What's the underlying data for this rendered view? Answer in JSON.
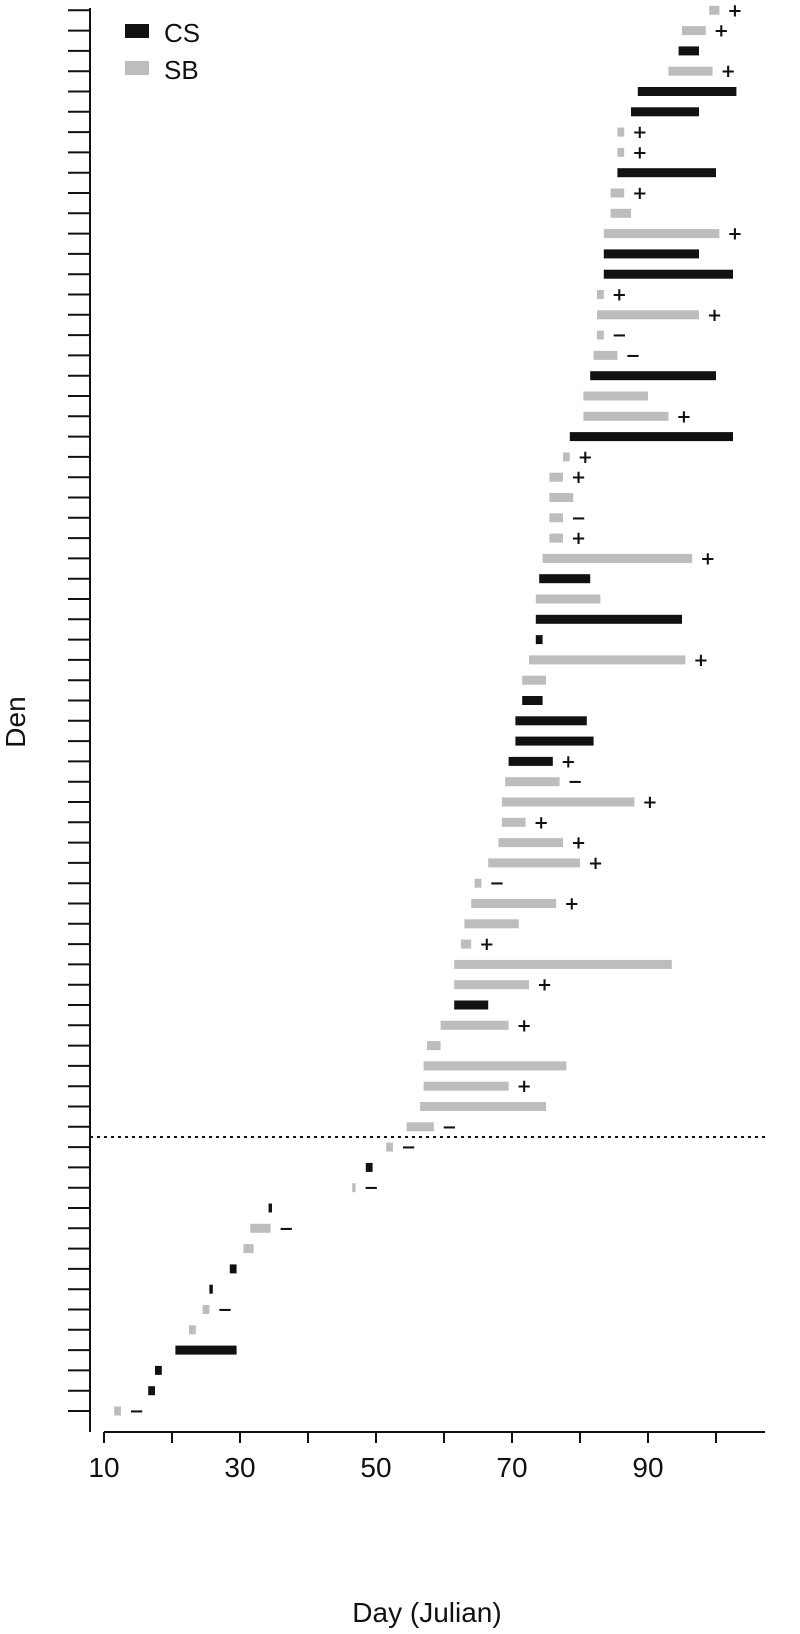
{
  "chart_data": {
    "type": "bar",
    "xlabel": "Day (Julian)",
    "ylabel": "Den",
    "xlim": [
      9,
      106
    ],
    "xticks": [
      10,
      30,
      50,
      70,
      90
    ],
    "tick_labels": [
      "10",
      "30",
      "50",
      "70",
      "90"
    ],
    "legend_position": "top-left",
    "colors": {
      "CS": "#111111",
      "SB": "#bdbdbd"
    },
    "series": [
      {
        "name": "CS"
      },
      {
        "name": "SB"
      }
    ],
    "threshold_line_style": "dotted",
    "threshold_after_den": 14,
    "bars": [
      {
        "den": 1,
        "type": "SB",
        "start": 11.5,
        "end": 12.5,
        "sign": "−"
      },
      {
        "den": 2,
        "type": "CS",
        "start": 16.5,
        "end": 17.5,
        "sign": ""
      },
      {
        "den": 3,
        "type": "CS",
        "start": 17.5,
        "end": 18.5,
        "sign": ""
      },
      {
        "den": 4,
        "type": "CS",
        "start": 20.5,
        "end": 29.5,
        "sign": ""
      },
      {
        "den": 5,
        "type": "SB",
        "start": 22.5,
        "end": 23.5,
        "sign": ""
      },
      {
        "den": 6,
        "type": "SB",
        "start": 24.5,
        "end": 25.5,
        "sign": "−"
      },
      {
        "den": 7,
        "type": "CS",
        "start": 25.5,
        "end": 26.0,
        "sign": ""
      },
      {
        "den": 8,
        "type": "CS",
        "start": 28.5,
        "end": 29.5,
        "sign": ""
      },
      {
        "den": 9,
        "type": "SB",
        "start": 30.5,
        "end": 32.0,
        "sign": ""
      },
      {
        "den": 10,
        "type": "SB",
        "start": 31.5,
        "end": 34.5,
        "sign": "−"
      },
      {
        "den": 11,
        "type": "CS",
        "start": 34.2,
        "end": 34.7,
        "sign": ""
      },
      {
        "den": 12,
        "type": "SB",
        "start": 46.5,
        "end": 47.0,
        "sign": "−"
      },
      {
        "den": 13,
        "type": "CS",
        "start": 48.5,
        "end": 49.5,
        "sign": ""
      },
      {
        "den": 14,
        "type": "SB",
        "start": 51.5,
        "end": 52.5,
        "sign": "−"
      },
      {
        "den": 15,
        "type": "SB",
        "start": 54.5,
        "end": 58.5,
        "sign": "−"
      },
      {
        "den": 16,
        "type": "SB",
        "start": 56.5,
        "end": 75.0,
        "sign": ""
      },
      {
        "den": 17,
        "type": "SB",
        "start": 57.0,
        "end": 69.5,
        "sign": "+"
      },
      {
        "den": 18,
        "type": "SB",
        "start": 57.0,
        "end": 78.0,
        "sign": ""
      },
      {
        "den": 19,
        "type": "SB",
        "start": 57.5,
        "end": 59.5,
        "sign": ""
      },
      {
        "den": 20,
        "type": "SB",
        "start": 59.5,
        "end": 69.5,
        "sign": "+"
      },
      {
        "den": 21,
        "type": "CS",
        "start": 61.5,
        "end": 66.5,
        "sign": ""
      },
      {
        "den": 22,
        "type": "SB",
        "start": 61.5,
        "end": 72.5,
        "sign": "+"
      },
      {
        "den": 23,
        "type": "SB",
        "start": 61.5,
        "end": 93.5,
        "sign": ""
      },
      {
        "den": 24,
        "type": "SB",
        "start": 62.5,
        "end": 64.0,
        "sign": "+"
      },
      {
        "den": 25,
        "type": "SB",
        "start": 63.0,
        "end": 71.0,
        "sign": ""
      },
      {
        "den": 26,
        "type": "SB",
        "start": 64.0,
        "end": 76.5,
        "sign": "+"
      },
      {
        "den": 27,
        "type": "SB",
        "start": 64.5,
        "end": 65.5,
        "sign": "−"
      },
      {
        "den": 28,
        "type": "SB",
        "start": 66.5,
        "end": 80.0,
        "sign": "+"
      },
      {
        "den": 29,
        "type": "SB",
        "start": 68.0,
        "end": 77.5,
        "sign": "+"
      },
      {
        "den": 30,
        "type": "SB",
        "start": 68.5,
        "end": 72.0,
        "sign": "+"
      },
      {
        "den": 31,
        "type": "SB",
        "start": 68.5,
        "end": 88.0,
        "sign": "+"
      },
      {
        "den": 32,
        "type": "SB",
        "start": 69.0,
        "end": 77.0,
        "sign": "−"
      },
      {
        "den": 33,
        "type": "CS",
        "start": 69.5,
        "end": 76.0,
        "sign": "+"
      },
      {
        "den": 34,
        "type": "CS",
        "start": 70.5,
        "end": 82.0,
        "sign": ""
      },
      {
        "den": 35,
        "type": "CS",
        "start": 70.5,
        "end": 81.0,
        "sign": ""
      },
      {
        "den": 36,
        "type": "CS",
        "start": 71.5,
        "end": 74.5,
        "sign": ""
      },
      {
        "den": 37,
        "type": "SB",
        "start": 71.5,
        "end": 75.0,
        "sign": ""
      },
      {
        "den": 38,
        "type": "SB",
        "start": 72.5,
        "end": 95.5,
        "sign": "+"
      },
      {
        "den": 39,
        "type": "CS",
        "start": 73.5,
        "end": 74.5,
        "sign": ""
      },
      {
        "den": 40,
        "type": "CS",
        "start": 73.5,
        "end": 95.0,
        "sign": ""
      },
      {
        "den": 41,
        "type": "SB",
        "start": 73.5,
        "end": 83.0,
        "sign": ""
      },
      {
        "den": 42,
        "type": "CS",
        "start": 74.0,
        "end": 81.5,
        "sign": ""
      },
      {
        "den": 43,
        "type": "SB",
        "start": 74.5,
        "end": 96.5,
        "sign": "+"
      },
      {
        "den": 44,
        "type": "SB",
        "start": 75.5,
        "end": 77.5,
        "sign": "+"
      },
      {
        "den": 45,
        "type": "SB",
        "start": 75.5,
        "end": 77.5,
        "sign": "−"
      },
      {
        "den": 46,
        "type": "SB",
        "start": 75.5,
        "end": 79.0,
        "sign": ""
      },
      {
        "den": 47,
        "type": "SB",
        "start": 75.5,
        "end": 77.5,
        "sign": "+"
      },
      {
        "den": 48,
        "type": "SB",
        "start": 77.5,
        "end": 78.5,
        "sign": "+"
      },
      {
        "den": 49,
        "type": "CS",
        "start": 78.5,
        "end": 102.5,
        "sign": ""
      },
      {
        "den": 50,
        "type": "SB",
        "start": 80.5,
        "end": 93.0,
        "sign": "+"
      },
      {
        "den": 51,
        "type": "SB",
        "start": 80.5,
        "end": 90.0,
        "sign": ""
      },
      {
        "den": 52,
        "type": "CS",
        "start": 81.5,
        "end": 100.0,
        "sign": ""
      },
      {
        "den": 53,
        "type": "SB",
        "start": 82.0,
        "end": 85.5,
        "sign": "−"
      },
      {
        "den": 54,
        "type": "SB",
        "start": 82.5,
        "end": 83.5,
        "sign": "−"
      },
      {
        "den": 55,
        "type": "SB",
        "start": 82.5,
        "end": 97.5,
        "sign": "+"
      },
      {
        "den": 56,
        "type": "SB",
        "start": 82.5,
        "end": 83.5,
        "sign": "+"
      },
      {
        "den": 57,
        "type": "CS",
        "start": 83.5,
        "end": 102.5,
        "sign": ""
      },
      {
        "den": 58,
        "type": "CS",
        "start": 83.5,
        "end": 97.5,
        "sign": ""
      },
      {
        "den": 59,
        "type": "SB",
        "start": 83.5,
        "end": 100.5,
        "sign": "+"
      },
      {
        "den": 60,
        "type": "SB",
        "start": 84.5,
        "end": 87.5,
        "sign": ""
      },
      {
        "den": 61,
        "type": "SB",
        "start": 84.5,
        "end": 86.5,
        "sign": "+"
      },
      {
        "den": 62,
        "type": "CS",
        "start": 85.5,
        "end": 100.0,
        "sign": ""
      },
      {
        "den": 63,
        "type": "SB",
        "start": 85.5,
        "end": 86.5,
        "sign": "+"
      },
      {
        "den": 64,
        "type": "SB",
        "start": 85.5,
        "end": 86.5,
        "sign": "+"
      },
      {
        "den": 65,
        "type": "CS",
        "start": 87.5,
        "end": 97.5,
        "sign": ""
      },
      {
        "den": 66,
        "type": "CS",
        "start": 88.5,
        "end": 103.0,
        "sign": ""
      },
      {
        "den": 67,
        "type": "SB",
        "start": 93.0,
        "end": 99.5,
        "sign": "+"
      },
      {
        "den": 68,
        "type": "CS",
        "start": 94.5,
        "end": 97.5,
        "sign": ""
      },
      {
        "den": 69,
        "type": "SB",
        "start": 95.0,
        "end": 98.5,
        "sign": "+"
      },
      {
        "den": 70,
        "type": "SB",
        "start": 99.0,
        "end": 100.5,
        "sign": "+"
      }
    ]
  }
}
